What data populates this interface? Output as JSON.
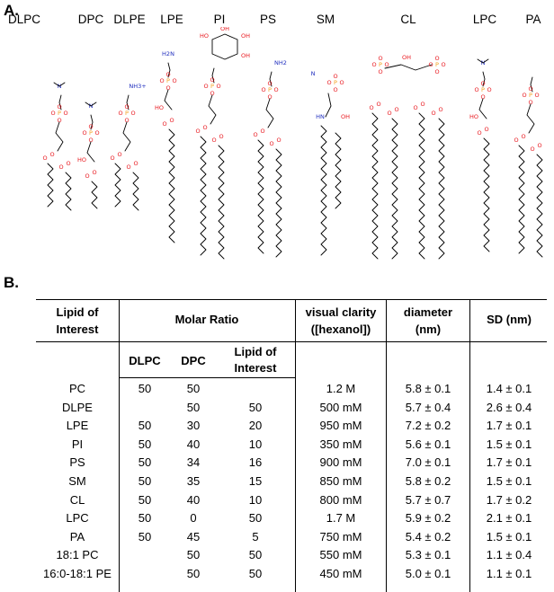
{
  "panel_a": {
    "label": "A.",
    "lipids": [
      "DLPC",
      "DPC",
      "DLPE",
      "LPE",
      "PI",
      "PS",
      "SM",
      "CL",
      "LPC",
      "PA"
    ]
  },
  "panel_b": {
    "label": "B.",
    "headers": {
      "lipid_of_interest": "Lipid of Interest",
      "molar_ratio": "Molar Ratio",
      "visual_clarity": "visual clarity ([hexanol])",
      "diameter": "diameter (nm)",
      "sd": "SD (nm)",
      "sub_dlpc": "DLPC",
      "sub_dpc": "DPC",
      "sub_lipid": "Lipid of Interest"
    },
    "rows": [
      {
        "lipid": "PC",
        "dlpc": "50",
        "dpc": "50",
        "loi": "",
        "clarity": "1.2 M",
        "diameter": "5.8 ± 0.1",
        "sd": "1.4 ± 0.1"
      },
      {
        "lipid": "DLPE",
        "dlpc": "",
        "dpc": "50",
        "loi": "50",
        "clarity": "500 mM",
        "diameter": "5.7 ± 0.4",
        "sd": "2.6 ± 0.4"
      },
      {
        "lipid": "LPE",
        "dlpc": "50",
        "dpc": "30",
        "loi": "20",
        "clarity": "950 mM",
        "diameter": "7.2 ± 0.2",
        "sd": "1.7 ± 0.1"
      },
      {
        "lipid": "PI",
        "dlpc": "50",
        "dpc": "40",
        "loi": "10",
        "clarity": "350 mM",
        "diameter": "5.6 ± 0.1",
        "sd": "1.5 ± 0.1"
      },
      {
        "lipid": "PS",
        "dlpc": "50",
        "dpc": "34",
        "loi": "16",
        "clarity": "900 mM",
        "diameter": "7.0 ± 0.1",
        "sd": "1.7 ± 0.1"
      },
      {
        "lipid": "SM",
        "dlpc": "50",
        "dpc": "35",
        "loi": "15",
        "clarity": "850 mM",
        "diameter": "5.8 ± 0.2",
        "sd": "1.5 ± 0.1"
      },
      {
        "lipid": "CL",
        "dlpc": "50",
        "dpc": "40",
        "loi": "10",
        "clarity": "800 mM",
        "diameter": "5.7 ± 0.7",
        "sd": "1.7 ± 0.2"
      },
      {
        "lipid": "LPC",
        "dlpc": "50",
        "dpc": "0",
        "loi": "50",
        "clarity": "1.7 M",
        "diameter": "5.9 ± 0.2",
        "sd": "2.1 ± 0.1"
      },
      {
        "lipid": "PA",
        "dlpc": "50",
        "dpc": "45",
        "loi": "5",
        "clarity": "750 mM",
        "diameter": "5.4 ± 0.2",
        "sd": "1.5 ± 0.1"
      },
      {
        "lipid": "18:1 PC",
        "dlpc": "",
        "dpc": "50",
        "loi": "50",
        "clarity": "550 mM",
        "diameter": "5.3 ± 0.1",
        "sd": "1.1 ± 0.4"
      },
      {
        "lipid": "16:0-18:1 PE",
        "dlpc": "",
        "dpc": "50",
        "loi": "50",
        "clarity": "450 mM",
        "diameter": "5.0 ± 0.1",
        "sd": "1.1 ± 0.1"
      }
    ]
  },
  "colors": {
    "oxygen": "#e8141b",
    "phosphorus": "#f4a020",
    "nitrogen": "#1e2dbe",
    "bond": "#000000"
  }
}
